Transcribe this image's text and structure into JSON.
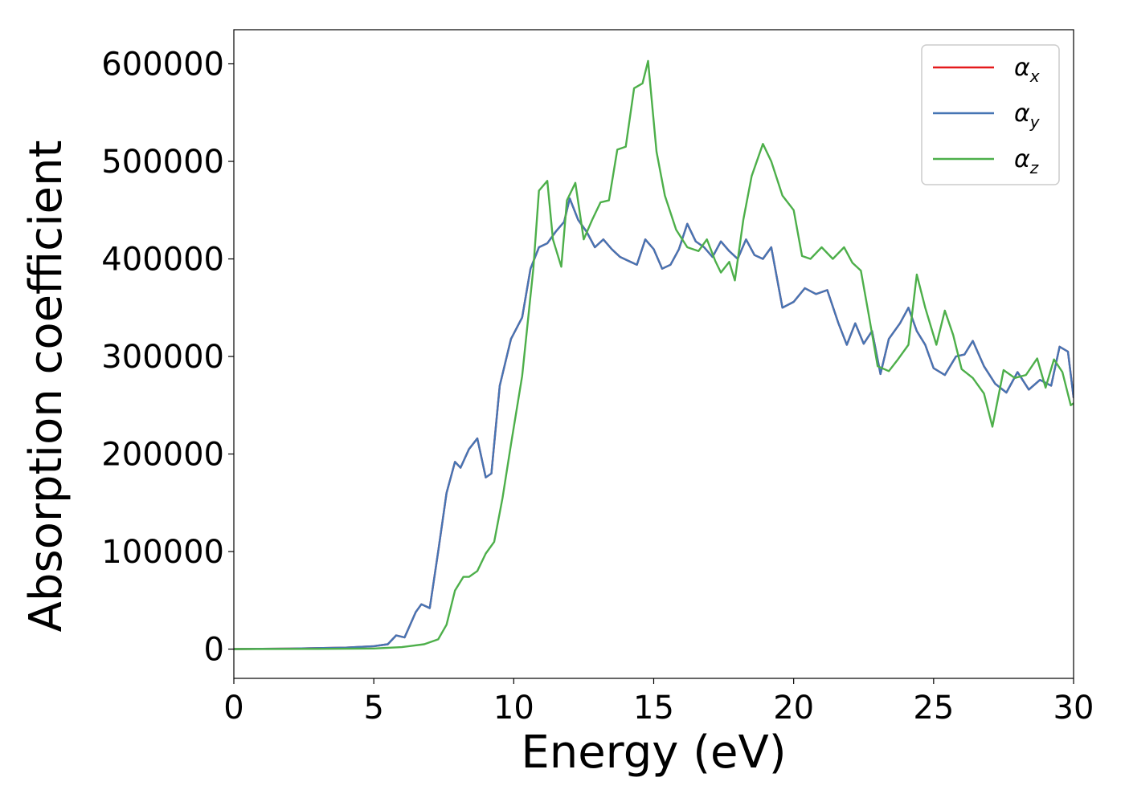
{
  "chart_data": {
    "type": "line",
    "title": "",
    "xlabel": "Energy (eV)",
    "ylabel": "Absorption coefficient",
    "xlim": [
      0,
      30
    ],
    "ylim": [
      -30000,
      635000
    ],
    "xticks": [
      0,
      5,
      10,
      15,
      20,
      25,
      30
    ],
    "yticks": [
      0,
      100000,
      200000,
      300000,
      400000,
      500000,
      600000
    ],
    "xtick_labels": [
      "0",
      "5",
      "10",
      "15",
      "20",
      "25",
      "30"
    ],
    "ytick_labels": [
      "0",
      "100000",
      "200000",
      "300000",
      "400000",
      "500000",
      "600000"
    ],
    "grid": false,
    "legend_position": "top-right",
    "series": [
      {
        "name": "αx",
        "symbol": "α",
        "subscript": "x",
        "color": "#e41a1c",
        "x": [
          0,
          2,
          4,
          5,
          5.5,
          5.8,
          6.1,
          6.5,
          6.7,
          7.0,
          7.3,
          7.6,
          7.9,
          8.1,
          8.4,
          8.7,
          9.0,
          9.2,
          9.5,
          9.9,
          10.3,
          10.6,
          10.9,
          11.2,
          11.5,
          11.8,
          12.0,
          12.3,
          12.6,
          12.9,
          13.2,
          13.5,
          13.8,
          14.1,
          14.4,
          14.7,
          15.0,
          15.3,
          15.6,
          15.9,
          16.2,
          16.5,
          16.8,
          17.1,
          17.4,
          17.7,
          18.0,
          18.3,
          18.6,
          18.9,
          19.2,
          19.6,
          20.0,
          20.4,
          20.8,
          21.2,
          21.6,
          21.9,
          22.2,
          22.5,
          22.8,
          23.1,
          23.4,
          23.8,
          24.1,
          24.4,
          24.7,
          25.0,
          25.4,
          25.8,
          26.1,
          26.4,
          26.8,
          27.2,
          27.6,
          28.0,
          28.4,
          28.8,
          29.2,
          29.5,
          29.8,
          30.0
        ],
        "y": [
          0,
          500,
          1500,
          3000,
          5000,
          14000,
          12000,
          38000,
          46000,
          42000,
          100000,
          160000,
          192000,
          186000,
          205000,
          216000,
          176000,
          180000,
          270000,
          318000,
          340000,
          390000,
          412000,
          416000,
          428000,
          438000,
          462000,
          440000,
          428000,
          412000,
          420000,
          410000,
          402000,
          398000,
          394000,
          420000,
          410000,
          390000,
          394000,
          410000,
          436000,
          418000,
          412000,
          402000,
          418000,
          408000,
          400000,
          420000,
          404000,
          400000,
          412000,
          350000,
          356000,
          370000,
          364000,
          368000,
          334000,
          312000,
          334000,
          313000,
          326000,
          282000,
          318000,
          334000,
          350000,
          326000,
          312000,
          288000,
          281000,
          300000,
          302000,
          316000,
          290000,
          272000,
          263000,
          284000,
          266000,
          276000,
          270000,
          310000,
          305000,
          258000
        ]
      },
      {
        "name": "αy",
        "symbol": "α",
        "subscript": "y",
        "color": "#4575b4",
        "x": [
          0,
          2,
          4,
          5,
          5.5,
          5.8,
          6.1,
          6.5,
          6.7,
          7.0,
          7.3,
          7.6,
          7.9,
          8.1,
          8.4,
          8.7,
          9.0,
          9.2,
          9.5,
          9.9,
          10.3,
          10.6,
          10.9,
          11.2,
          11.5,
          11.8,
          12.0,
          12.3,
          12.6,
          12.9,
          13.2,
          13.5,
          13.8,
          14.1,
          14.4,
          14.7,
          15.0,
          15.3,
          15.6,
          15.9,
          16.2,
          16.5,
          16.8,
          17.1,
          17.4,
          17.7,
          18.0,
          18.3,
          18.6,
          18.9,
          19.2,
          19.6,
          20.0,
          20.4,
          20.8,
          21.2,
          21.6,
          21.9,
          22.2,
          22.5,
          22.8,
          23.1,
          23.4,
          23.8,
          24.1,
          24.4,
          24.7,
          25.0,
          25.4,
          25.8,
          26.1,
          26.4,
          26.8,
          27.2,
          27.6,
          28.0,
          28.4,
          28.8,
          29.2,
          29.5,
          29.8,
          30.0
        ],
        "y": [
          0,
          500,
          1500,
          3000,
          5000,
          14000,
          12000,
          38000,
          46000,
          42000,
          100000,
          160000,
          192000,
          186000,
          205000,
          216000,
          176000,
          180000,
          270000,
          318000,
          340000,
          390000,
          412000,
          416000,
          428000,
          438000,
          462000,
          440000,
          428000,
          412000,
          420000,
          410000,
          402000,
          398000,
          394000,
          420000,
          410000,
          390000,
          394000,
          410000,
          436000,
          418000,
          412000,
          402000,
          418000,
          408000,
          400000,
          420000,
          404000,
          400000,
          412000,
          350000,
          356000,
          370000,
          364000,
          368000,
          334000,
          312000,
          334000,
          313000,
          326000,
          282000,
          318000,
          334000,
          350000,
          326000,
          312000,
          288000,
          281000,
          300000,
          302000,
          316000,
          290000,
          272000,
          263000,
          284000,
          266000,
          276000,
          270000,
          310000,
          305000,
          258000
        ]
      },
      {
        "name": "αz",
        "symbol": "α",
        "subscript": "z",
        "color": "#4daf4a",
        "x": [
          0,
          3,
          5,
          6,
          6.8,
          7.3,
          7.6,
          7.9,
          8.2,
          8.4,
          8.7,
          9.0,
          9.3,
          9.6,
          9.9,
          10.3,
          10.7,
          10.9,
          11.2,
          11.4,
          11.7,
          11.9,
          12.2,
          12.5,
          12.8,
          13.1,
          13.4,
          13.7,
          14.0,
          14.3,
          14.6,
          14.8,
          15.1,
          15.4,
          15.8,
          16.2,
          16.6,
          16.9,
          17.2,
          17.4,
          17.7,
          17.9,
          18.2,
          18.5,
          18.9,
          19.2,
          19.6,
          20.0,
          20.3,
          20.6,
          21.0,
          21.4,
          21.8,
          22.1,
          22.4,
          22.7,
          23.0,
          23.4,
          23.7,
          24.1,
          24.4,
          24.7,
          25.1,
          25.4,
          25.7,
          26.0,
          26.4,
          26.8,
          27.1,
          27.5,
          27.9,
          28.3,
          28.7,
          29.0,
          29.3,
          29.6,
          29.9,
          30.0
        ],
        "y": [
          0,
          200,
          600,
          2000,
          5000,
          10000,
          25000,
          60000,
          74000,
          74000,
          80000,
          98000,
          110000,
          155000,
          210000,
          280000,
          390000,
          470000,
          480000,
          420000,
          392000,
          460000,
          478000,
          420000,
          440000,
          458000,
          460000,
          512000,
          515000,
          575000,
          580000,
          603000,
          510000,
          465000,
          430000,
          412000,
          408000,
          420000,
          398000,
          386000,
          397000,
          378000,
          440000,
          485000,
          518000,
          500000,
          465000,
          450000,
          403000,
          400000,
          412000,
          400000,
          412000,
          396000,
          388000,
          340000,
          290000,
          285000,
          296000,
          312000,
          384000,
          350000,
          312000,
          347000,
          322000,
          287000,
          278000,
          262000,
          228000,
          286000,
          278000,
          281000,
          298000,
          268000,
          297000,
          284000,
          250000,
          252000
        ]
      }
    ]
  }
}
